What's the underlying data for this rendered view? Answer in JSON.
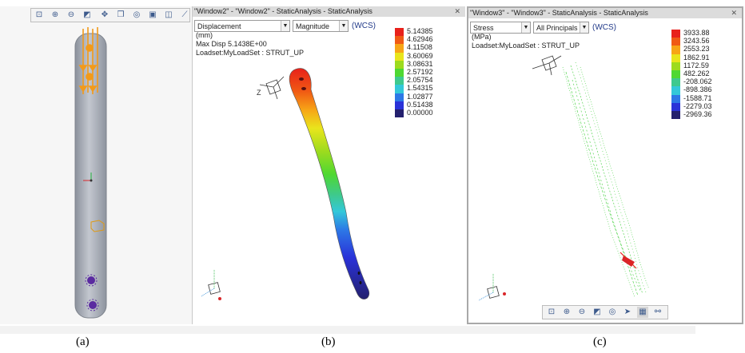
{
  "toolbar_a": {
    "icons": [
      "zoom-fit-icon",
      "zoom-in-icon",
      "zoom-out-icon",
      "refit-icon",
      "pan-icon",
      "view-cube-icon",
      "view-orient-icon",
      "display-icon",
      "layer-icon",
      "measure-icon"
    ]
  },
  "window2": {
    "title": "\"Window2\" - \"Window2\" - StaticAnalysis - StaticAnalysis",
    "quantity_select": "Displacement",
    "component_select": "Magnitude",
    "csys": "(WCS)",
    "unit": "(mm)",
    "max_disp": "Max Disp  5.1438E+00",
    "loadset": "Loadset:MyLoadSet :  STRUT_UP",
    "legend": [
      "5.14385",
      "4.62946",
      "4.11508",
      "3.60069",
      "3.08631",
      "2.57192",
      "2.05754",
      "1.54315",
      "1.02877",
      "0.51438",
      "0.00000"
    ],
    "legend_colors": [
      "#e8211b",
      "#f05a14",
      "#f7a516",
      "#e9e51c",
      "#9ddb1e",
      "#4ed832",
      "#3ec98e",
      "#33c8d9",
      "#2d78e6",
      "#2a32d8",
      "#24206e"
    ]
  },
  "window3": {
    "title": "\"Window3\" - \"Window3\" - StaticAnalysis - StaticAnalysis",
    "quantity_select": "Stress",
    "component_select": "All Principals",
    "csys": "(WCS)",
    "unit": "(MPa)",
    "loadset": "Loadset:MyLoadSet :  STRUT_UP",
    "legend": [
      "3933.88",
      "3243.56",
      "2553.23",
      "1862.91",
      "1172.59",
      "482.262",
      "-208.062",
      "-898.386",
      "-1588.71",
      "-2279.03",
      "-2969.36"
    ],
    "legend_colors": [
      "#e8211b",
      "#f05a14",
      "#f7a516",
      "#e9e51c",
      "#9ddb1e",
      "#4ed832",
      "#3ec98e",
      "#33c8d9",
      "#2d78e6",
      "#2a32d8",
      "#24206e"
    ],
    "toolbar_icons": [
      "zoom-fit-icon",
      "zoom-in-icon",
      "zoom-out-icon",
      "refit-icon",
      "view-orient-icon",
      "spin-icon",
      "display-style-icon",
      "network-icon"
    ]
  },
  "captions": {
    "a": "(a)",
    "b": "(b)",
    "c": "(c)"
  }
}
